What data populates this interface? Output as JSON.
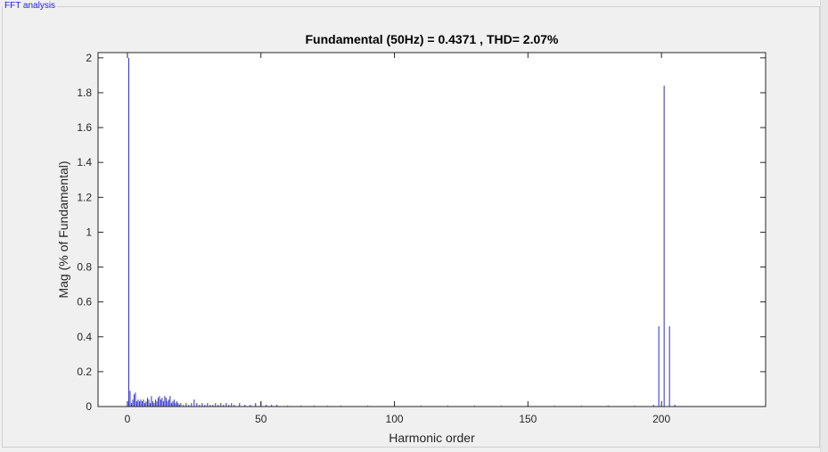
{
  "panel": {
    "title": "FFT analysis"
  },
  "colors": {
    "bar": "#2b2bd6",
    "axis": "#262626",
    "background": "#ffffff",
    "panel": "#f0f0f0"
  },
  "chart_data": {
    "type": "bar",
    "title": "Fundamental (50Hz) = 0.4371 , THD= 2.07%",
    "xlabel": "Harmonic order",
    "ylabel": "Mag (% of Fundamental)",
    "xlim": [
      -11,
      239
    ],
    "ylim": [
      0,
      2.03
    ],
    "xticks": [
      0,
      50,
      100,
      150,
      200
    ],
    "yticks": [
      0,
      0.2,
      0.4,
      0.6,
      0.8,
      1,
      1.2,
      1.4,
      1.6,
      1.8,
      2
    ],
    "ytick_labels": [
      "0",
      "0.2",
      "0.4",
      "0.6",
      "0.8",
      "1",
      "1.2",
      "1.4",
      "1.6",
      "1.8",
      "2"
    ],
    "grid": false,
    "x": [
      0,
      0.5,
      1,
      1.5,
      2,
      2.5,
      3,
      3.5,
      4,
      4.5,
      5,
      5.5,
      6,
      6.5,
      7,
      7.5,
      8,
      8.5,
      9,
      9.5,
      10,
      10.5,
      11,
      11.5,
      12,
      12.5,
      13,
      13.5,
      14,
      14.5,
      15,
      15.5,
      16,
      16.5,
      17,
      17.5,
      18,
      18.5,
      19,
      19.5,
      20,
      21,
      22,
      23,
      24,
      25,
      26,
      27,
      28,
      29,
      30,
      31,
      32,
      33,
      34,
      35,
      36,
      37,
      38,
      39,
      40,
      42,
      44,
      46,
      48,
      50,
      52,
      54,
      56,
      60,
      65,
      70,
      75,
      80,
      90,
      100,
      110,
      120,
      130,
      140,
      150,
      160,
      170,
      180,
      190,
      197,
      199,
      201,
      203,
      205
    ],
    "values": [
      0.03,
      2.0,
      0.09,
      0.02,
      0.04,
      0.07,
      0.08,
      0.03,
      0.04,
      0.03,
      0.04,
      0.03,
      0.04,
      0.02,
      0.03,
      0.05,
      0.04,
      0.02,
      0.06,
      0.03,
      0.02,
      0.04,
      0.03,
      0.05,
      0.06,
      0.04,
      0.05,
      0.03,
      0.06,
      0.05,
      0.03,
      0.04,
      0.06,
      0.02,
      0.03,
      0.04,
      0.02,
      0.03,
      0.02,
      0.01,
      0.02,
      0.01,
      0.02,
      0.01,
      0.02,
      0.04,
      0.02,
      0.01,
      0.02,
      0.01,
      0.02,
      0.01,
      0.01,
      0.02,
      0.01,
      0.02,
      0.01,
      0.02,
      0.01,
      0.02,
      0.01,
      0.02,
      0.01,
      0.01,
      0.02,
      0.03,
      0.01,
      0.01,
      0.01,
      0.005,
      0.005,
      0.005,
      0.005,
      0.005,
      0.005,
      0.005,
      0.005,
      0.005,
      0.005,
      0.005,
      0.005,
      0.005,
      0.005,
      0.005,
      0.005,
      0.01,
      0.46,
      1.84,
      0.46,
      0.01
    ]
  }
}
